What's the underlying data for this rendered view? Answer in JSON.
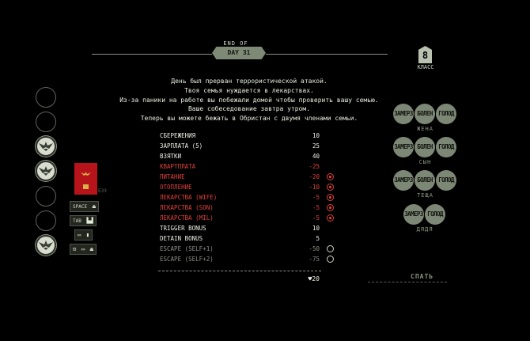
{
  "header": {
    "end_of": "END OF",
    "day": "DAY 31",
    "class_num": "8",
    "class_label": "КЛАСС"
  },
  "message": [
    "День был прерван террористической атакой.",
    "Твоя семья нуждается в лекарствах.",
    "Из-за паники на работе вы побежали домой чтобы проверить вашу семью.",
    "Ваше собеседование завтра утром.",
    "Теперь вы можете бежать в Обристан с двумя членами семьи."
  ],
  "ledger": [
    {
      "label": "СБЕРЕЖЕНИЯ",
      "value": "10",
      "style": "white",
      "mark": "none"
    },
    {
      "label": "ЗАРПЛАТА (5)",
      "value": "25",
      "style": "white",
      "mark": "none"
    },
    {
      "label": "ВЗЯТКИ",
      "value": "40",
      "style": "white",
      "mark": "none"
    },
    {
      "label": "КВАРТПЛАТА",
      "value": "-25",
      "style": "red",
      "mark": "none"
    },
    {
      "label": "ПИТАНИЕ",
      "value": "-20",
      "style": "red",
      "mark": "on"
    },
    {
      "label": "ОТОПЛЕНИЕ",
      "value": "-10",
      "style": "red",
      "mark": "on"
    },
    {
      "label": "ЛЕКАРСТВА (WIFE)",
      "value": "-5",
      "style": "red",
      "mark": "on"
    },
    {
      "label": "ЛЕКАРСТВА (SON)",
      "value": "-5",
      "style": "red",
      "mark": "on"
    },
    {
      "label": "ЛЕКАРСТВА (MIL)",
      "value": "-5",
      "style": "red",
      "mark": "on"
    },
    {
      "label": "TRIGGER BONUS",
      "value": "10",
      "style": "white",
      "mark": "none"
    },
    {
      "label": "DETAIN BONUS",
      "value": "5",
      "style": "white",
      "mark": "none"
    },
    {
      "label": "ESCAPE (SELF+1)",
      "value": "-50",
      "style": "gray",
      "mark": "off"
    },
    {
      "label": "ESCAPE (SELF+2)",
      "value": "-75",
      "style": "gray",
      "mark": "off"
    }
  ],
  "total": "♥20",
  "slots": [
    false,
    false,
    true,
    true,
    false,
    false,
    true
  ],
  "passport_code": "ЕЗЭ",
  "keys": {
    "space": "SPACE",
    "tab": "TAB"
  },
  "family": [
    {
      "name": "ЖЕНА",
      "statuses": [
        "ЗАМЕРЗ",
        "БОЛЕН",
        "ГОЛОД"
      ]
    },
    {
      "name": "СЫН",
      "statuses": [
        "ЗАМЕРЗ",
        "БОЛЕН",
        "ГОЛОД"
      ]
    },
    {
      "name": "ТЕЩА",
      "statuses": [
        "ЗАМЕРЗ",
        "БОЛЕН",
        "ГОЛОД"
      ]
    },
    {
      "name": "ДЯДЯ",
      "statuses": [
        "ЗАМЕРЗ",
        "ГОЛОД"
      ]
    }
  ],
  "sleep_label": "СПАТЬ",
  "colors": {
    "background": "#000000",
    "accent": "#7f8a76",
    "negative": "#e0403a",
    "passport": "#b7131a"
  },
  "icons": {
    "slot": "eagle-emblem-icon",
    "space_key": "eject-icon",
    "tab_key": "desk-icon",
    "book_key": "rulebook-icon",
    "bookmark": "bookmark-icon"
  }
}
